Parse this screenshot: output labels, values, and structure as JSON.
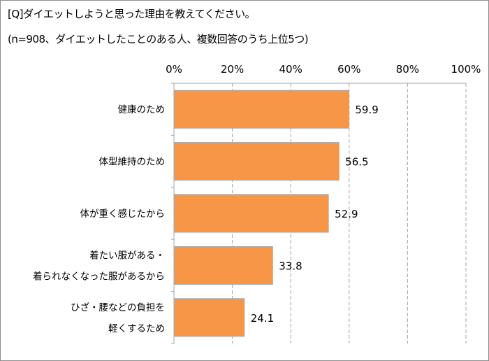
{
  "chart_data": {
    "type": "bar",
    "orientation": "horizontal",
    "title": "[Q]ダイエットしようと思った理由を教えてください。",
    "subtitle": "(n=908、ダイエットしたことのある人、複数回答のうち上位5つ)",
    "categories": [
      [
        "健康のため"
      ],
      [
        "体型維持のため"
      ],
      [
        "体が重く感じたから"
      ],
      [
        "着たい服がある・",
        "着られなくなった服があるから"
      ],
      [
        "ひざ・腰などの負担を",
        "軽くするため"
      ]
    ],
    "values": [
      59.9,
      56.5,
      52.9,
      33.8,
      24.1
    ],
    "value_labels": [
      "59.9",
      "56.5",
      "52.9",
      "33.8",
      "24.1"
    ],
    "xlim": [
      0,
      100
    ],
    "xticks": [
      0,
      20,
      40,
      60,
      80,
      100
    ],
    "xtick_labels": [
      "0%",
      "20%",
      "40%",
      "60%",
      "80%",
      "100%"
    ],
    "grid": true,
    "xlabel": "",
    "ylabel": "",
    "colors": {
      "bar": "#F79646",
      "bar_border": "#A6A6A6",
      "grid": "#A6A6A6"
    }
  }
}
